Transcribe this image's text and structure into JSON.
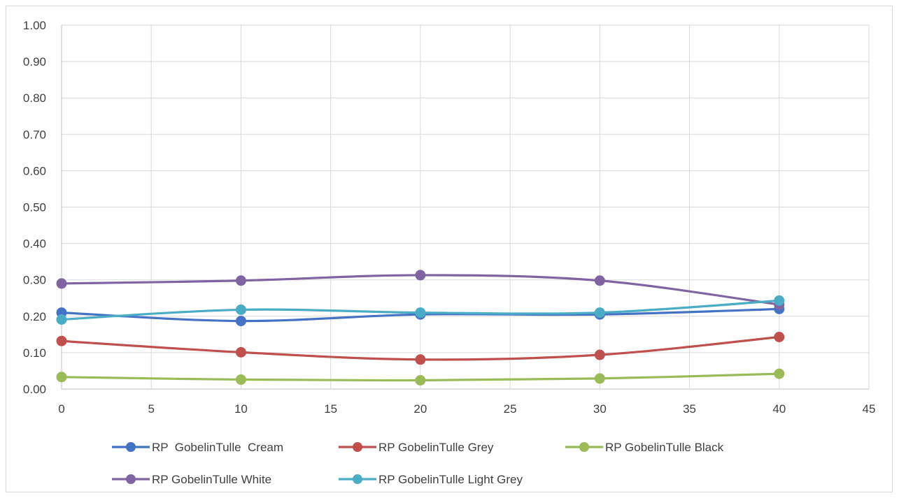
{
  "chart_data": {
    "type": "line",
    "title": "",
    "xlabel": "",
    "ylabel": "",
    "xlim": [
      0,
      45
    ],
    "ylim": [
      0,
      1
    ],
    "xticks": [
      0,
      5,
      10,
      15,
      20,
      25,
      30,
      35,
      40,
      45
    ],
    "xtick_labels": [
      "0",
      "5",
      "10",
      "15",
      "20",
      "25",
      "30",
      "35",
      "40",
      "45"
    ],
    "yticks": [
      0,
      0.1,
      0.2,
      0.3,
      0.4,
      0.5,
      0.6,
      0.7,
      0.8,
      0.9,
      1.0
    ],
    "ytick_labels": [
      "0.00",
      "0.10",
      "0.20",
      "0.30",
      "0.40",
      "0.50",
      "0.60",
      "0.70",
      "0.80",
      "0.90",
      "1.00"
    ],
    "grid": true,
    "legend_position": "bottom",
    "smooth": true,
    "series": [
      {
        "name": "RP  GobelinTulle  Cream",
        "color": "#4472c4",
        "x": [
          0,
          10,
          20,
          30,
          40
        ],
        "y": [
          0.21,
          0.187,
          0.205,
          0.205,
          0.22
        ]
      },
      {
        "name": "RP GobelinTulle Grey",
        "color": "#c0504d",
        "x": [
          0,
          10,
          20,
          30,
          40
        ],
        "y": [
          0.132,
          0.101,
          0.081,
          0.094,
          0.143
        ]
      },
      {
        "name": "RP GobelinTulle Black",
        "color": "#9bbb59",
        "x": [
          0,
          10,
          20,
          30,
          40
        ],
        "y": [
          0.033,
          0.026,
          0.024,
          0.029,
          0.042
        ]
      },
      {
        "name": "RP GobelinTulle White",
        "color": "#8064a2",
        "x": [
          0,
          10,
          20,
          30,
          40
        ],
        "y": [
          0.29,
          0.298,
          0.313,
          0.298,
          0.232
        ]
      },
      {
        "name": "RP GobelinTulle Light Grey",
        "color": "#4bacc6",
        "x": [
          0,
          10,
          20,
          30,
          40
        ],
        "y": [
          0.191,
          0.218,
          0.21,
          0.21,
          0.243
        ]
      }
    ]
  }
}
